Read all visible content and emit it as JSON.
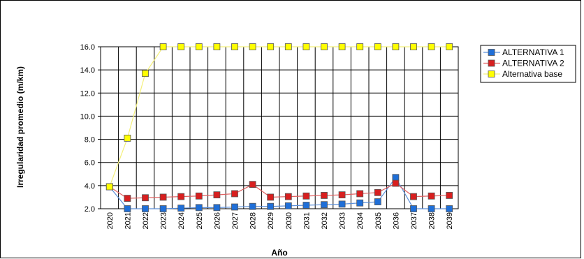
{
  "chart_data": {
    "type": "line",
    "title": "",
    "xlabel": "Año",
    "ylabel": "Irregularidad promedio (m/km)",
    "ylim": [
      2.0,
      16.0
    ],
    "yticks": [
      "2.0",
      "4.0",
      "6.0",
      "8.0",
      "10.0",
      "12.0",
      "14.0",
      "16.0"
    ],
    "grid": true,
    "legend_position": "right",
    "x": [
      "2020",
      "2021",
      "2022",
      "2023",
      "2024",
      "2025",
      "2026",
      "2027",
      "2028",
      "2029",
      "2030",
      "2031",
      "2032",
      "2033",
      "2034",
      "2035",
      "2036",
      "2037",
      "2038",
      "2039"
    ],
    "series": [
      {
        "name": "ALTERNATIVA 1",
        "color": "#1f6fd8",
        "line_color": "#5b8fd9",
        "values": [
          3.9,
          2.0,
          2.0,
          2.0,
          2.05,
          2.1,
          2.1,
          2.15,
          2.2,
          2.2,
          2.25,
          2.3,
          2.35,
          2.4,
          2.5,
          2.6,
          4.7,
          2.0,
          2.0,
          2.0
        ]
      },
      {
        "name": "ALTERNATIVA 2",
        "color": "#d81f1f",
        "line_color": "#e06060",
        "values": [
          3.9,
          2.9,
          2.95,
          3.0,
          3.05,
          3.1,
          3.2,
          3.3,
          4.1,
          3.0,
          3.05,
          3.1,
          3.15,
          3.2,
          3.3,
          3.4,
          4.2,
          3.05,
          3.1,
          3.15
        ]
      },
      {
        "name": "Alternativa base",
        "color": "#ffff00",
        "line_color": "#f4f07a",
        "values": [
          3.9,
          8.1,
          13.7,
          16.0,
          16.0,
          16.0,
          16.0,
          16.0,
          16.0,
          16.0,
          16.0,
          16.0,
          16.0,
          16.0,
          16.0,
          16.0,
          16.0,
          16.0,
          16.0,
          16.0
        ]
      }
    ]
  }
}
